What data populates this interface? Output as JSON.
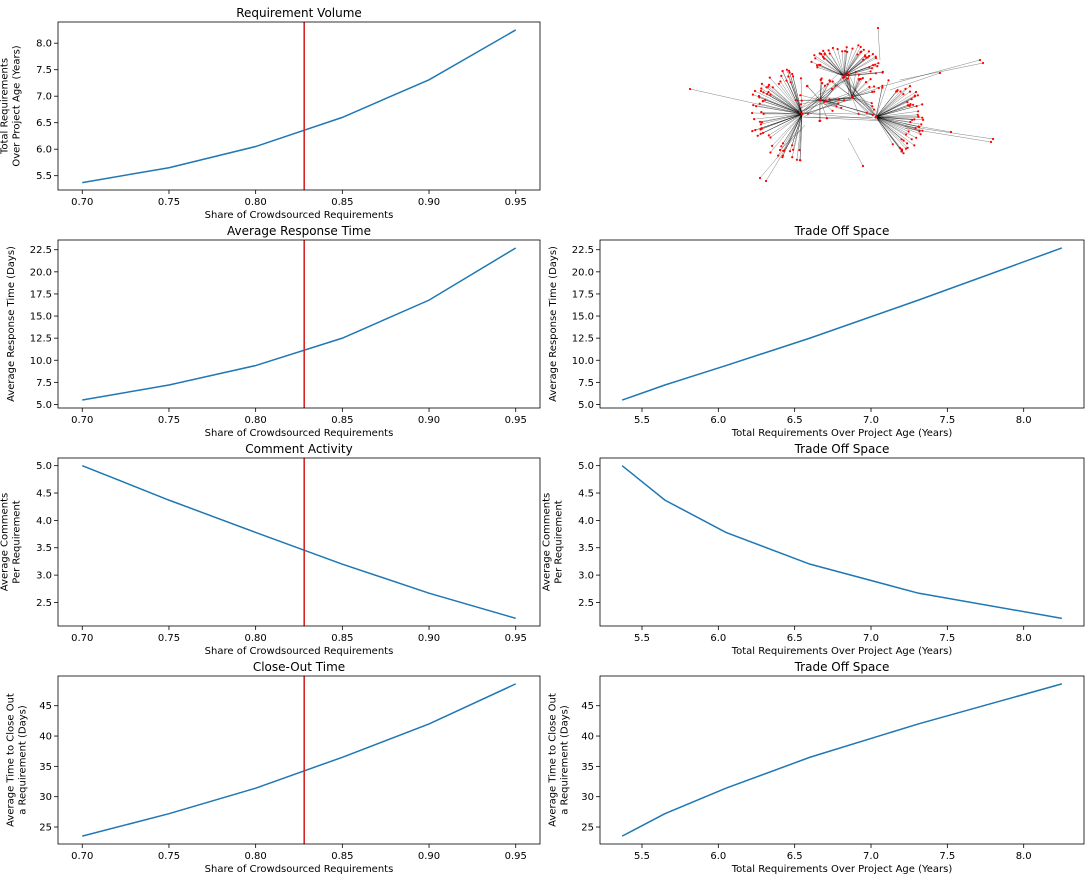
{
  "chart_data": [
    {
      "id": "requirement-volume",
      "type": "line",
      "title": "Requirement Volume",
      "xlabel": "Share of Crowdsourced Requirements",
      "ylabel": [
        "Total Requirements",
        "Over Project Age (Years)"
      ],
      "x": [
        0.7,
        0.75,
        0.8,
        0.85,
        0.9,
        0.95
      ],
      "y": [
        5.37,
        5.65,
        6.05,
        6.6,
        7.31,
        8.25
      ],
      "xlim": [
        0.686,
        0.964
      ],
      "ylim": [
        5.23,
        8.4
      ],
      "xticks": [
        "0.70",
        "0.75",
        "0.80",
        "0.85",
        "0.90",
        "0.95"
      ],
      "yticks": [
        "5.5",
        "6.0",
        "6.5",
        "7.0",
        "7.5",
        "8.0"
      ],
      "vline": 0.828,
      "line_color": "#1f77b4",
      "vline_color": "#d62728"
    },
    {
      "id": "network-graph",
      "type": "network",
      "node_color": "#ff0000",
      "edge_color": "#000000"
    },
    {
      "id": "average-response-time",
      "type": "line",
      "title": "Average Response Time",
      "xlabel": "Share of Crowdsourced Requirements",
      "ylabel": [
        "Average Response Time (Days)"
      ],
      "x": [
        0.7,
        0.75,
        0.8,
        0.85,
        0.9,
        0.95
      ],
      "y": [
        5.5,
        7.2,
        9.4,
        12.5,
        16.8,
        22.7
      ],
      "xlim": [
        0.686,
        0.964
      ],
      "ylim": [
        4.6,
        23.6
      ],
      "xticks": [
        "0.70",
        "0.75",
        "0.80",
        "0.85",
        "0.90",
        "0.95"
      ],
      "yticks": [
        "5.0",
        "7.5",
        "10.0",
        "12.5",
        "15.0",
        "17.5",
        "20.0",
        "22.5"
      ],
      "vline": 0.828,
      "line_color": "#1f77b4",
      "vline_color": "#d62728"
    },
    {
      "id": "trade-off-space-response",
      "type": "line",
      "title": "Trade Off Space",
      "xlabel": "Total Requirements Over Project Age (Years)",
      "ylabel": [
        "Average Response Time (Days)"
      ],
      "x": [
        5.37,
        5.65,
        6.05,
        6.6,
        7.31,
        8.25
      ],
      "y": [
        5.5,
        7.2,
        9.4,
        12.5,
        16.8,
        22.7
      ],
      "xlim": [
        5.225,
        8.395
      ],
      "ylim": [
        4.6,
        23.6
      ],
      "xticks": [
        "5.5",
        "6.0",
        "6.5",
        "7.0",
        "7.5",
        "8.0"
      ],
      "yticks": [
        "5.0",
        "7.5",
        "10.0",
        "12.5",
        "15.0",
        "17.5",
        "20.0",
        "22.5"
      ],
      "line_color": "#1f77b4"
    },
    {
      "id": "comment-activity",
      "type": "line",
      "title": "Comment Activity",
      "xlabel": "Share of Crowdsourced Requirements",
      "ylabel": [
        "Average Comments",
        "Per Requirement"
      ],
      "x": [
        0.7,
        0.75,
        0.8,
        0.85,
        0.9,
        0.95
      ],
      "y": [
        5.0,
        4.37,
        3.78,
        3.2,
        2.67,
        2.21
      ],
      "xlim": [
        0.686,
        0.964
      ],
      "ylim": [
        2.07,
        5.14
      ],
      "xticks": [
        "0.70",
        "0.75",
        "0.80",
        "0.85",
        "0.90",
        "0.95"
      ],
      "yticks": [
        "2.5",
        "3.0",
        "3.5",
        "4.0",
        "4.5",
        "5.0"
      ],
      "vline": 0.828,
      "line_color": "#1f77b4",
      "vline_color": "#d62728"
    },
    {
      "id": "trade-off-space-comments",
      "type": "line",
      "title": "Trade Off Space",
      "xlabel": "Total Requirements Over Project Age (Years)",
      "ylabel": [
        "Average Comments",
        "Per Requirement"
      ],
      "x": [
        5.37,
        5.65,
        6.05,
        6.6,
        7.31,
        8.25
      ],
      "y": [
        5.0,
        4.37,
        3.78,
        3.2,
        2.67,
        2.21
      ],
      "xlim": [
        5.225,
        8.395
      ],
      "ylim": [
        2.07,
        5.14
      ],
      "xticks": [
        "5.5",
        "6.0",
        "6.5",
        "7.0",
        "7.5",
        "8.0"
      ],
      "yticks": [
        "2.5",
        "3.0",
        "3.5",
        "4.0",
        "4.5",
        "5.0"
      ],
      "line_color": "#1f77b4"
    },
    {
      "id": "close-out-time",
      "type": "line",
      "title": "Close-Out Time",
      "xlabel": "Share of Crowdsourced Requirements",
      "ylabel": [
        "Average Time to Close Out",
        "a Requirement (Days)"
      ],
      "x": [
        0.7,
        0.75,
        0.8,
        0.85,
        0.9,
        0.95
      ],
      "y": [
        23.5,
        27.2,
        31.4,
        36.5,
        42.0,
        48.6
      ],
      "xlim": [
        0.686,
        0.964
      ],
      "ylim": [
        22.2,
        49.9
      ],
      "xticks": [
        "0.70",
        "0.75",
        "0.80",
        "0.85",
        "0.90",
        "0.95"
      ],
      "yticks": [
        "25",
        "30",
        "35",
        "40",
        "45"
      ],
      "vline": 0.828,
      "line_color": "#1f77b4",
      "vline_color": "#d62728"
    },
    {
      "id": "trade-off-space-closeout",
      "type": "line",
      "title": "Trade Off Space",
      "xlabel": "Total Requirements Over Project Age (Years)",
      "ylabel": [
        "Average Time to Close Out",
        "a Requirement (Days)"
      ],
      "x": [
        5.37,
        5.65,
        6.05,
        6.6,
        7.31,
        8.25
      ],
      "y": [
        23.5,
        27.2,
        31.4,
        36.5,
        42.0,
        48.6
      ],
      "xlim": [
        5.225,
        8.395
      ],
      "ylim": [
        22.2,
        49.9
      ],
      "xticks": [
        "5.5",
        "6.0",
        "6.5",
        "7.0",
        "7.5",
        "8.0"
      ],
      "yticks": [
        "25",
        "30",
        "35",
        "40",
        "45"
      ],
      "line_color": "#1f77b4"
    }
  ]
}
